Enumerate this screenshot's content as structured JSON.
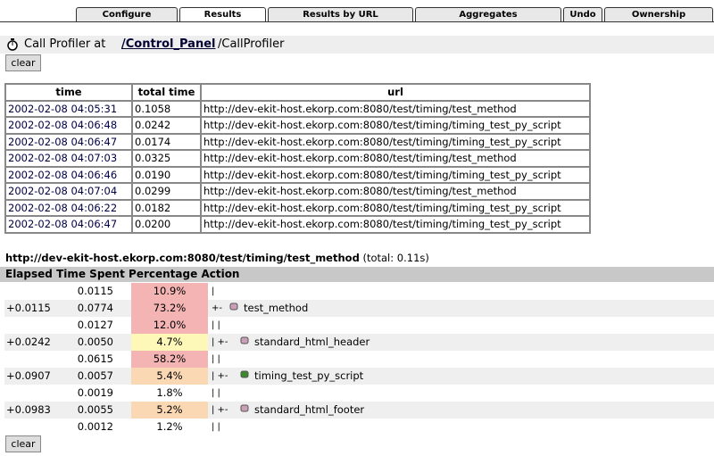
{
  "tabs": [
    "Configure",
    "Results",
    "Results by URL",
    "Aggregates",
    "Undo",
    "Ownership"
  ],
  "active_tab": 1,
  "header": {
    "prefix": "Call Profiler at",
    "link": "/Control_Panel",
    "rest": "/CallProfiler"
  },
  "clear_button": "clear",
  "results_table": {
    "columns": [
      "time",
      "total time",
      "url"
    ],
    "rows": [
      [
        "2002-02-08 04:05:31",
        "0.1058",
        "http://dev-ekit-host.ekorp.com:8080/test/timing/test_method"
      ],
      [
        "2002-02-08 04:06:48",
        "0.0242",
        "http://dev-ekit-host.ekorp.com:8080/test/timing/timing_test_py_script"
      ],
      [
        "2002-02-08 04:06:47",
        "0.0174",
        "http://dev-ekit-host.ekorp.com:8080/test/timing/timing_test_py_script"
      ],
      [
        "2002-02-08 04:07:03",
        "0.0325",
        "http://dev-ekit-host.ekorp.com:8080/test/timing/test_method"
      ],
      [
        "2002-02-08 04:06:46",
        "0.0190",
        "http://dev-ekit-host.ekorp.com:8080/test/timing/timing_test_py_script"
      ],
      [
        "2002-02-08 04:07:04",
        "0.0299",
        "http://dev-ekit-host.ekorp.com:8080/test/timing/test_method"
      ],
      [
        "2002-02-08 04:06:22",
        "0.0182",
        "http://dev-ekit-host.ekorp.com:8080/test/timing/timing_test_py_script"
      ],
      [
        "2002-02-08 04:06:47",
        "0.0200",
        "http://dev-ekit-host.ekorp.com:8080/test/timing/timing_test_py_script"
      ]
    ]
  },
  "detail": {
    "url": "http://dev-ekit-host.ekorp.com:8080/test/timing/test_method",
    "total": "(total: 0.11s)",
    "columns": [
      "Elapsed",
      "Time Spent",
      "Percentage",
      "Action"
    ],
    "rows": [
      {
        "time": "0.0115",
        "percentage": "10.9%",
        "color": "#f4b4b4",
        "tree": "|"
      },
      {
        "elapsed": "+0.0115",
        "time": "0.0774",
        "percentage": "73.2%",
        "color": "#f4b4b4",
        "tree": "+-",
        "action": "test_method"
      },
      {
        "time": "0.0127",
        "percentage": "12.0%",
        "color": "#f4b4b4",
        "tree": "| |"
      },
      {
        "elapsed": "+0.0242",
        "time": "0.0050",
        "percentage": "4.7%",
        "color": "#fdf8b8",
        "tree": "| +-",
        "action": "standard_html_header"
      },
      {
        "time": "0.0615",
        "percentage": "58.2%",
        "color": "#f4b4b4",
        "tree": "| |"
      },
      {
        "elapsed": "+0.0907",
        "time": "0.0057",
        "percentage": "5.4%",
        "color": "#fbd8b4",
        "tree": "| +-",
        "action": "timing_test_py_script"
      },
      {
        "time": "0.0019",
        "percentage": "1.8%",
        "color": "#ffffff",
        "tree": "| |"
      },
      {
        "elapsed": "+0.0983",
        "time": "0.0055",
        "percentage": "5.2%",
        "color": "#fbd8b4",
        "tree": "| +-",
        "action": "standard_html_footer"
      },
      {
        "time": "0.0012",
        "percentage": "1.2%",
        "color": "#ffffff",
        "tree": "| |"
      }
    ]
  }
}
